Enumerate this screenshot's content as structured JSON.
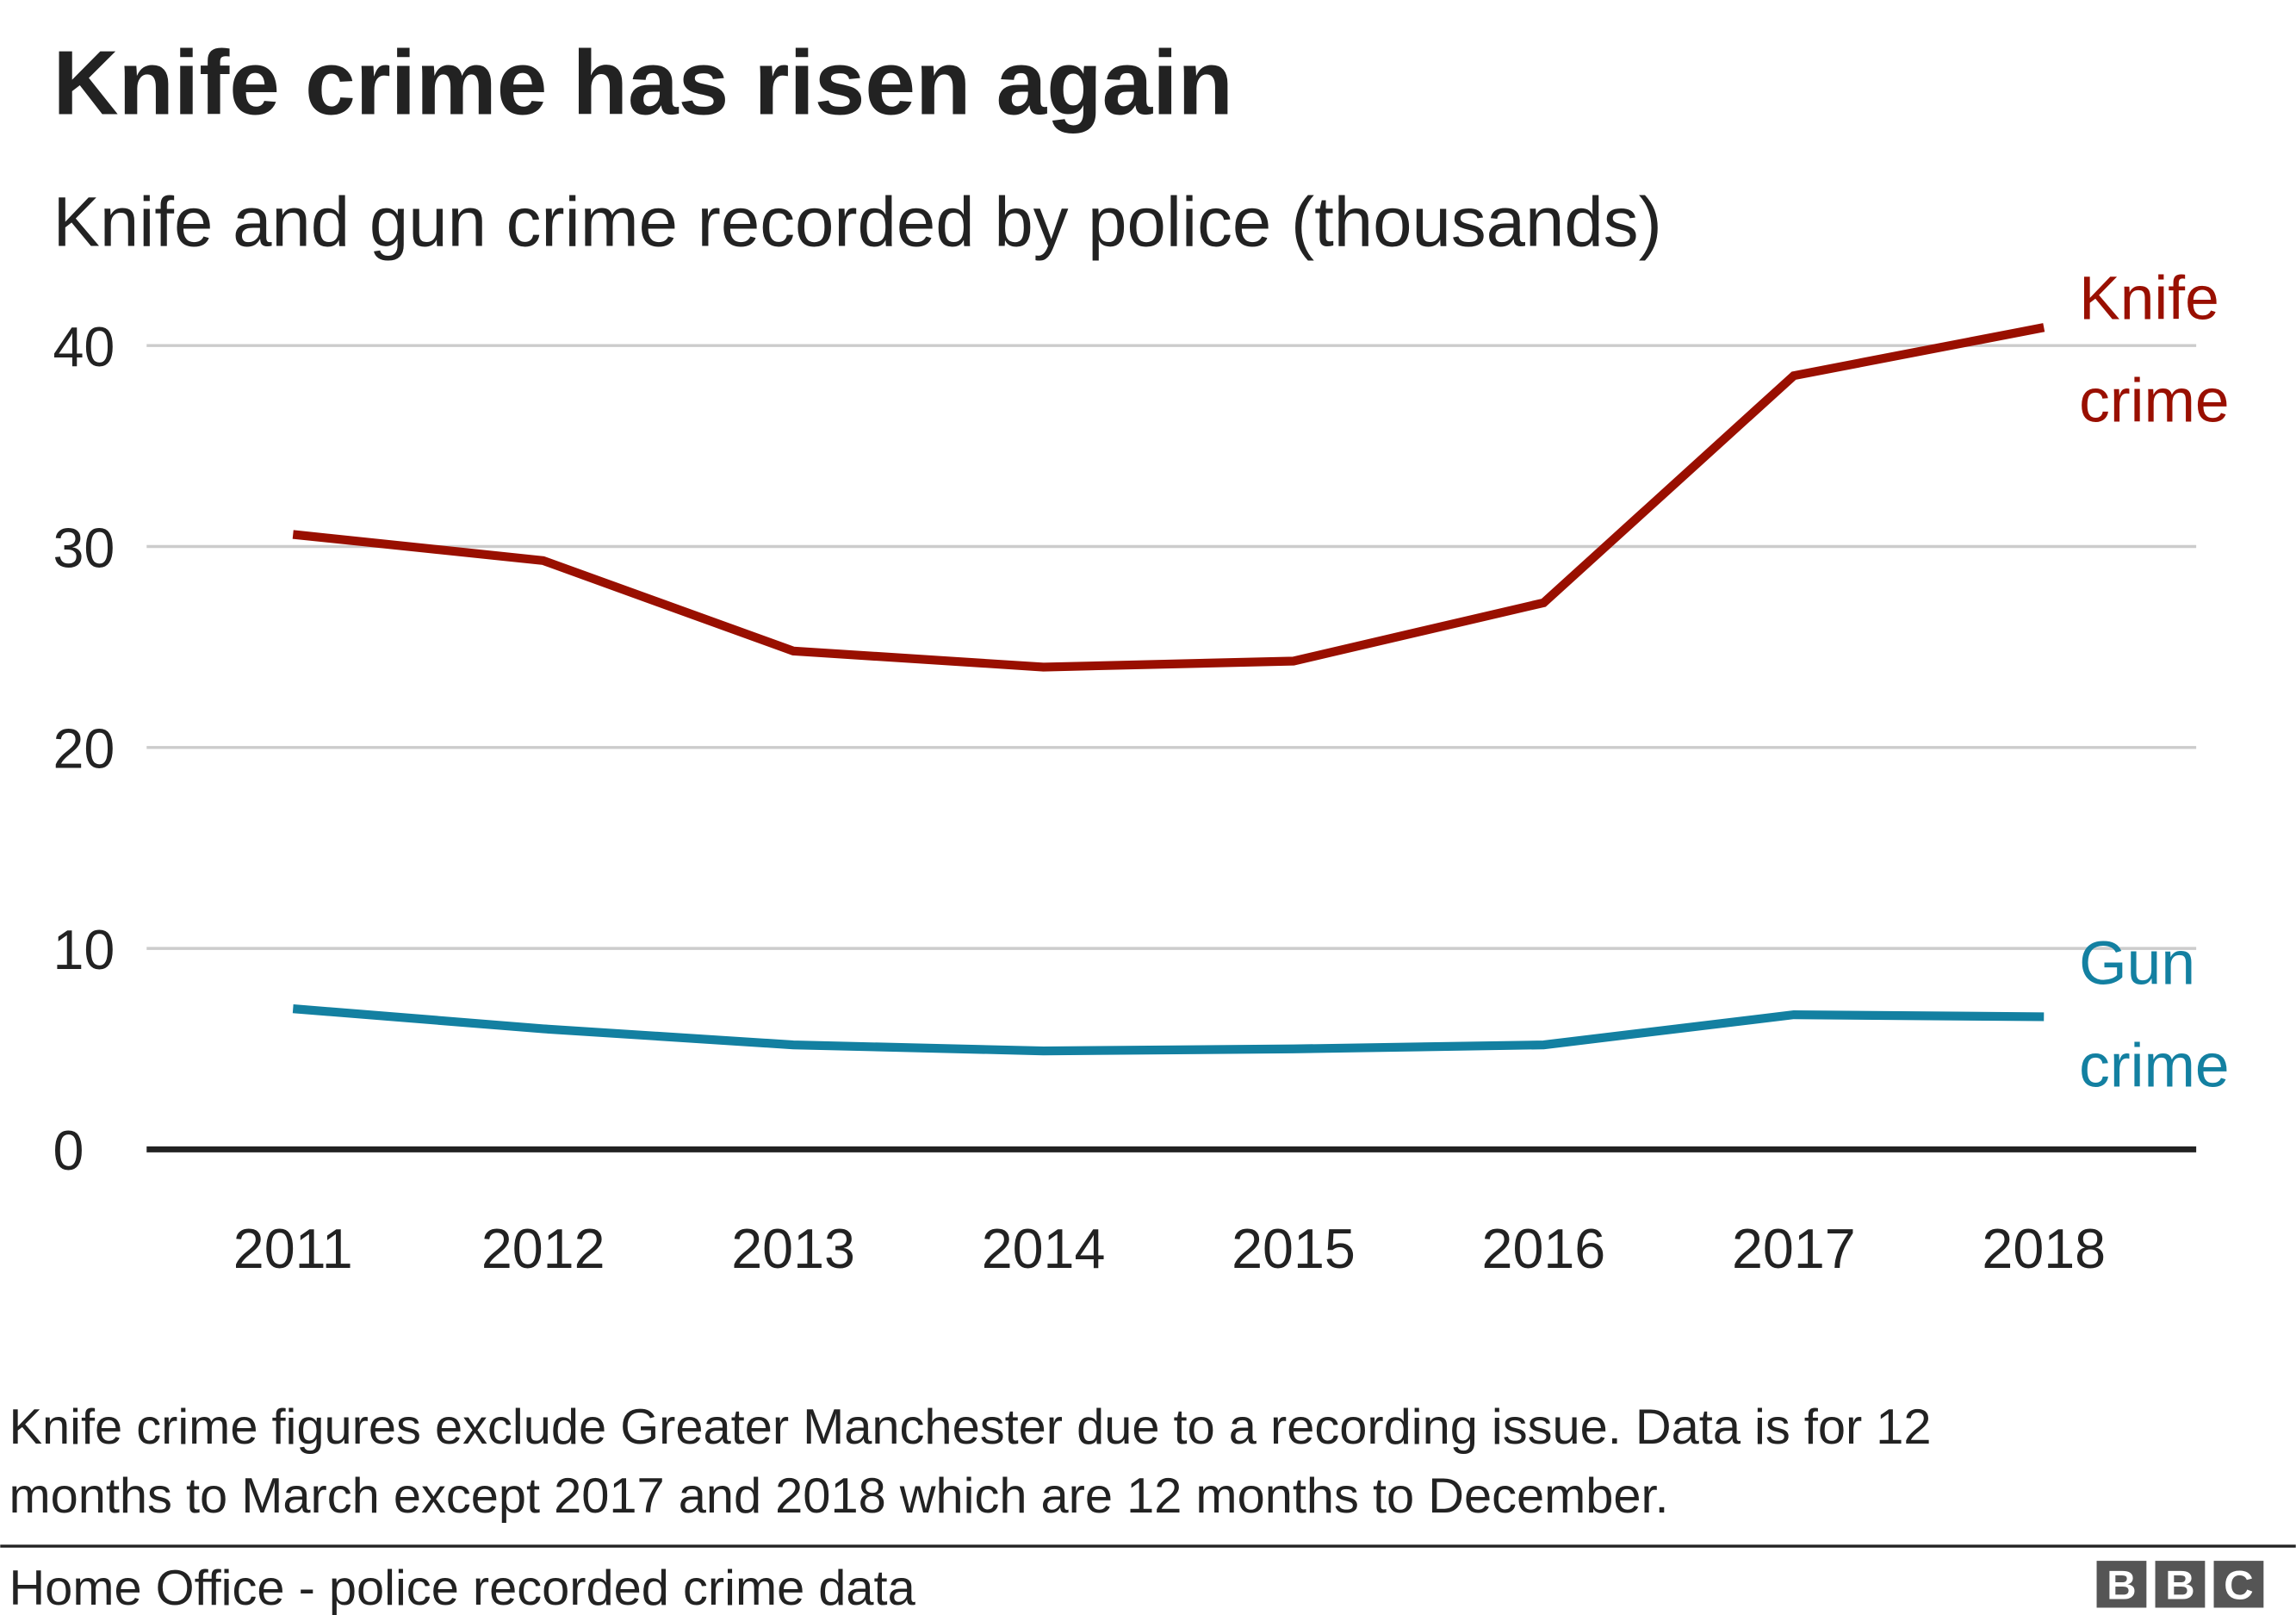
{
  "title": "Knife crime has risen again",
  "subtitle": "Knife and gun crime recorded by police (thousands)",
  "note_line1": "Knife crime figures exclude Greater Manchester due to a recording issue. Data is for 12",
  "note_line2": "months to March except 2017 and 2018 which are 12 months to December.",
  "source": "Home Office - police recorded crime data",
  "logo": "BBC",
  "chart_data": {
    "type": "line",
    "title": "Knife crime has risen again",
    "subtitle": "Knife and gun crime recorded by police (thousands)",
    "x": [
      "2011",
      "2012",
      "2013",
      "2014",
      "2015",
      "2016",
      "2017",
      "2018"
    ],
    "ylim": [
      0,
      40
    ],
    "yticks": [
      0,
      10,
      20,
      30,
      40
    ],
    "grid": true,
    "legend": "direct labels at line ends (right)",
    "series": [
      {
        "name_line1": "Knife",
        "name_line2": "crime",
        "color": "#990f00",
        "values": [
          30.6,
          29.3,
          24.8,
          24.0,
          24.3,
          27.2,
          38.5,
          40.9
        ]
      },
      {
        "name_line1": "Gun",
        "name_line2": "crime",
        "color": "#1380a1",
        "values": [
          7.0,
          6.0,
          5.2,
          4.9,
          5.0,
          5.2,
          6.7,
          6.6
        ]
      }
    ]
  }
}
